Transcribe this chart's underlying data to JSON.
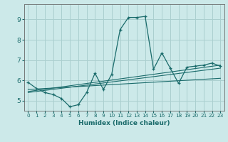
{
  "xlabel": "Humidex (Indice chaleur)",
  "background_color": "#cce9e9",
  "grid_color": "#aacfcf",
  "line_color": "#1a6b6b",
  "x_min": -0.5,
  "x_max": 23.5,
  "y_min": 4.5,
  "y_max": 9.75,
  "yticks": [
    5,
    6,
    7,
    8,
    9
  ],
  "xticks": [
    0,
    1,
    2,
    3,
    4,
    5,
    6,
    7,
    8,
    9,
    10,
    11,
    12,
    13,
    14,
    15,
    16,
    17,
    18,
    19,
    20,
    21,
    22,
    23
  ],
  "series1": {
    "x": [
      0,
      1,
      2,
      3,
      4,
      5,
      6,
      7,
      8,
      9,
      10,
      11,
      12,
      13,
      14,
      15,
      16,
      17,
      18,
      19,
      20,
      21,
      22,
      23
    ],
    "y": [
      5.9,
      5.6,
      5.4,
      5.3,
      5.1,
      4.7,
      4.8,
      5.4,
      6.35,
      5.55,
      6.3,
      8.5,
      9.1,
      9.1,
      9.15,
      6.55,
      7.35,
      6.6,
      5.85,
      6.65,
      6.7,
      6.75,
      6.85,
      6.7
    ]
  },
  "series2": {
    "x": [
      0,
      23
    ],
    "y": [
      5.55,
      6.1
    ]
  },
  "series3": {
    "x": [
      0,
      23
    ],
    "y": [
      5.45,
      6.75
    ]
  },
  "series4": {
    "x": [
      0,
      23
    ],
    "y": [
      5.4,
      6.6
    ]
  }
}
